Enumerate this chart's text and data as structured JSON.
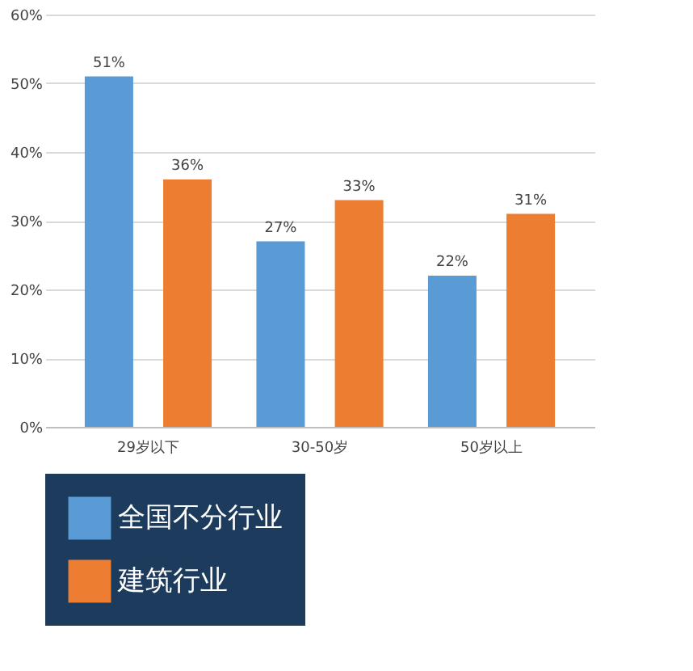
{
  "chart_data": {
    "type": "bar",
    "categories": [
      "29岁以下",
      "30-50岁",
      "50岁以上"
    ],
    "series": [
      {
        "name": "全国不分行业",
        "color": "#5b9bd5",
        "values": [
          51,
          27,
          22
        ],
        "value_labels": [
          "51%",
          "27%",
          "22%"
        ]
      },
      {
        "name": "建筑行业",
        "color": "#ed7d31",
        "values": [
          36,
          33,
          31
        ],
        "value_labels": [
          "36%",
          "33%",
          "31%"
        ]
      }
    ],
    "ylim": [
      0,
      60
    ],
    "yticks": [
      {
        "value": 0,
        "label": "0%"
      },
      {
        "value": 10,
        "label": "10%"
      },
      {
        "value": 20,
        "label": "20%"
      },
      {
        "value": 30,
        "label": "30%"
      },
      {
        "value": 40,
        "label": "40%"
      },
      {
        "value": 50,
        "label": "50%"
      },
      {
        "value": 60,
        "label": "60%"
      }
    ],
    "grid": "y",
    "legend": "bottom"
  }
}
